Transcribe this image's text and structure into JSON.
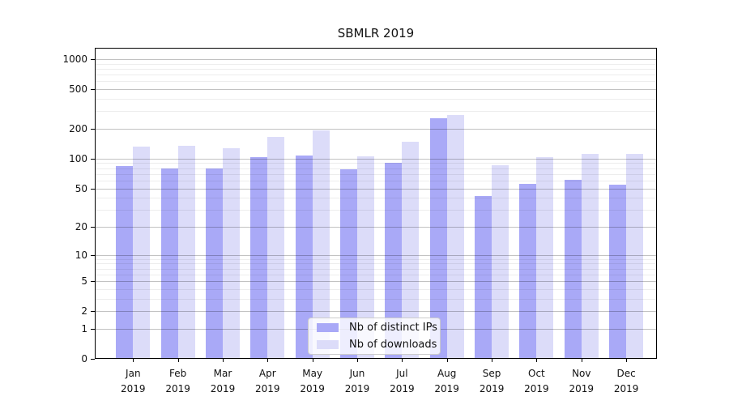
{
  "chart_data": {
    "type": "bar",
    "title": "SBMLR 2019",
    "y_scale": "log1p",
    "months": [
      "Jan",
      "Feb",
      "Mar",
      "Apr",
      "May",
      "Jun",
      "Jul",
      "Aug",
      "Sep",
      "Oct",
      "Nov",
      "Dec"
    ],
    "year_label": "2019",
    "series": [
      {
        "name": "Nb of distinct IPs",
        "color": "#a9a9f7",
        "values": [
          84,
          79,
          79,
          104,
          108,
          78,
          91,
          257,
          42,
          55,
          61,
          54
        ]
      },
      {
        "name": "Nb of downloads",
        "color": "#dcdcf9",
        "values": [
          132,
          134,
          127,
          166,
          194,
          106,
          148,
          275,
          85,
          103,
          112,
          112
        ]
      }
    ],
    "y_major_ticks": [
      0,
      1,
      2,
      5,
      10,
      20,
      50,
      100,
      200,
      500,
      1000
    ],
    "y_minor_ticks": [
      3,
      4,
      6,
      7,
      8,
      9,
      30,
      40,
      60,
      70,
      80,
      90,
      300,
      400,
      600,
      700,
      800,
      900
    ],
    "ylim": [
      0,
      1300
    ],
    "grid": true,
    "legend_position": "lower center"
  },
  "colors": {
    "bar_distinct_ips": "#a9a9f7",
    "bar_downloads": "#dcdcf9",
    "major_grid": "#c2c2c2",
    "minor_grid": "#ededed",
    "spine": "#000000",
    "text": "#111111"
  }
}
